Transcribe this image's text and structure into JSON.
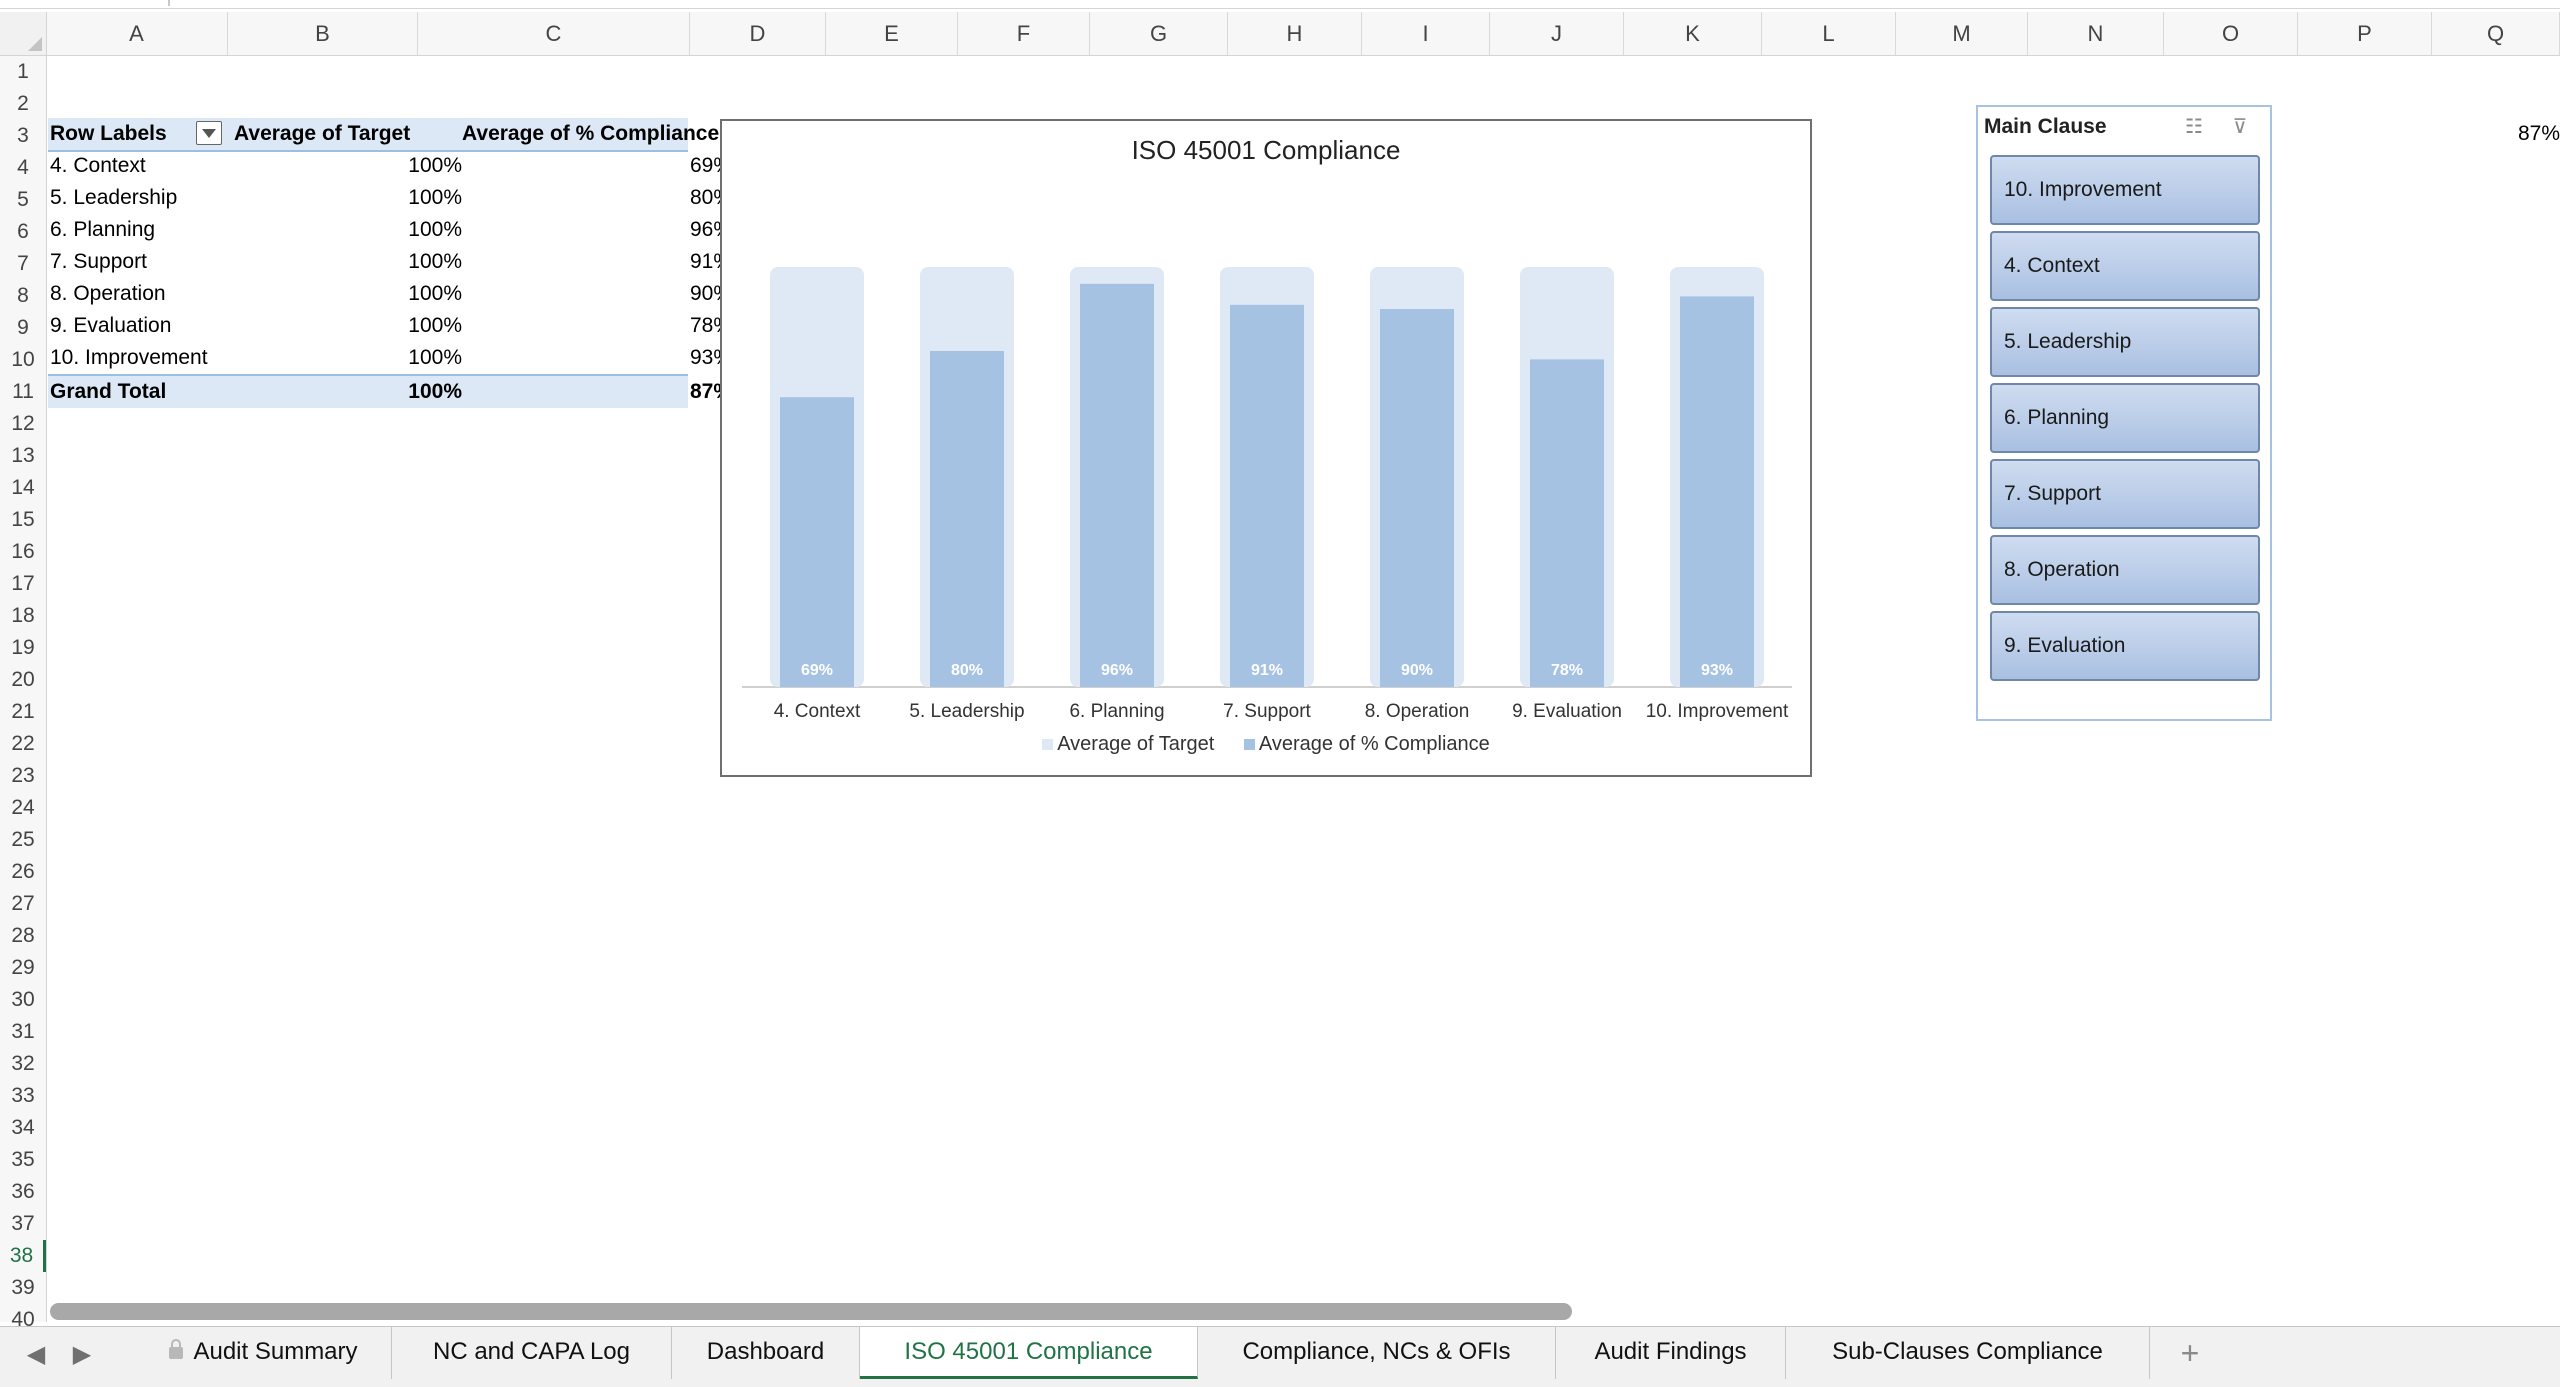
{
  "columns": [
    "A",
    "B",
    "C",
    "D",
    "E",
    "F",
    "G",
    "H",
    "I",
    "J",
    "K",
    "L",
    "M",
    "N",
    "O",
    "P",
    "Q"
  ],
  "rows": [
    "1",
    "2",
    "3",
    "4",
    "5",
    "6",
    "7",
    "8",
    "9",
    "10",
    "11",
    "12",
    "13",
    "14",
    "15",
    "16",
    "17",
    "18",
    "19",
    "20",
    "21",
    "22",
    "23",
    "24",
    "25",
    "26",
    "27",
    "28",
    "29",
    "30",
    "31",
    "32",
    "33",
    "34",
    "35",
    "36",
    "37",
    "38",
    "39",
    "40"
  ],
  "active_row": "38",
  "pivot": {
    "headers": {
      "row_labels": "Row Labels",
      "target": "Average of Target",
      "compliance": "Average of % Compliance"
    },
    "rows": [
      {
        "label": "4. Context",
        "target": "100%",
        "compliance": "69%"
      },
      {
        "label": "5. Leadership",
        "target": "100%",
        "compliance": "80%"
      },
      {
        "label": "6. Planning",
        "target": "100%",
        "compliance": "96%"
      },
      {
        "label": "7. Support",
        "target": "100%",
        "compliance": "91%"
      },
      {
        "label": "8. Operation",
        "target": "100%",
        "compliance": "90%"
      },
      {
        "label": "9. Evaluation",
        "target": "100%",
        "compliance": "78%"
      },
      {
        "label": "10. Improvement",
        "target": "100%",
        "compliance": "93%"
      }
    ],
    "total": {
      "label": "Grand Total",
      "target": "100%",
      "compliance": "87%"
    }
  },
  "chart_data": {
    "type": "bar",
    "title": "ISO 45001 Compliance",
    "categories": [
      "4. Context",
      "5. Leadership",
      "6. Planning",
      "7. Support",
      "8. Operation",
      "9. Evaluation",
      "10. Improvement"
    ],
    "series": [
      {
        "name": "Average of Target",
        "values": [
          100,
          100,
          100,
          100,
          100,
          100,
          100
        ],
        "color": "#dfe9f5"
      },
      {
        "name": "Average of % Compliance",
        "values": [
          69,
          80,
          96,
          91,
          90,
          78,
          93
        ],
        "color": "#a6c2e3"
      }
    ],
    "data_labels": [
      "69%",
      "80%",
      "96%",
      "91%",
      "90%",
      "78%",
      "93%"
    ],
    "ylim": [
      0,
      100
    ],
    "legend": "bottom",
    "grid": false
  },
  "slicer": {
    "title": "Main Clause",
    "icons": [
      "multi-select-icon",
      "clear-filter-icon"
    ],
    "items": [
      "10. Improvement",
      "4. Context",
      "5. Leadership",
      "6. Planning",
      "7. Support",
      "8. Operation",
      "9. Evaluation"
    ]
  },
  "q_cell_value": "87%",
  "tabs": [
    "Audit Summary",
    "NC and CAPA Log",
    "Dashboard",
    "ISO 45001 Compliance",
    "Compliance, NCs & OFIs",
    "Audit Findings",
    "Sub-Clauses Compliance"
  ],
  "active_tab": "ISO 45001 Compliance",
  "add_tab_label": "+"
}
